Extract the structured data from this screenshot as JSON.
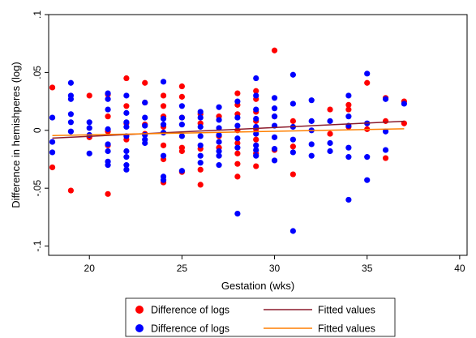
{
  "chart_data": {
    "type": "scatter",
    "xlabel": "Gestation (wks)",
    "ylabel": "Difference in hemishperes (log)",
    "xlim": [
      17.8,
      40.4
    ],
    "ylim": [
      -0.108,
      0.1
    ],
    "xticks": [
      "20",
      "25",
      "30",
      "35",
      "40"
    ],
    "xtick_values": [
      20,
      25,
      30,
      35,
      40
    ],
    "yticks": [
      ".1",
      ".05",
      "0",
      "-.05",
      "-.1"
    ],
    "ytick_values": [
      0.1,
      0.05,
      0,
      -0.05,
      -0.1
    ],
    "grid": false,
    "legend_position": "bottom",
    "series": [
      {
        "name": "Difference of logs",
        "kind": "scatter",
        "color": "#ff0000",
        "points": [
          [
            18,
            0.037
          ],
          [
            18,
            -0.032
          ],
          [
            19,
            -0.052
          ],
          [
            20,
            0.03
          ],
          [
            20,
            -0.006
          ],
          [
            21,
            0.031
          ],
          [
            21,
            0.012
          ],
          [
            21,
            -0.001
          ],
          [
            21,
            -0.013
          ],
          [
            21,
            -0.055
          ],
          [
            22,
            0.045
          ],
          [
            22,
            0.021
          ],
          [
            22,
            0.006
          ],
          [
            22,
            -0.008
          ],
          [
            23,
            0.041
          ],
          [
            23,
            0.024
          ],
          [
            23,
            0.005
          ],
          [
            23,
            -0.003
          ],
          [
            24,
            0.03
          ],
          [
            24,
            0.021
          ],
          [
            24,
            0.012
          ],
          [
            24,
            0.003
          ],
          [
            24,
            -0.013
          ],
          [
            24,
            -0.025
          ],
          [
            24,
            -0.045
          ],
          [
            25,
            0.038
          ],
          [
            25,
            0.029
          ],
          [
            25,
            0.011
          ],
          [
            25,
            -0.015
          ],
          [
            25,
            -0.018
          ],
          [
            25,
            -0.036
          ],
          [
            26,
            0.014
          ],
          [
            26,
            0.006
          ],
          [
            26,
            -0.016
          ],
          [
            26,
            -0.034
          ],
          [
            26,
            -0.047
          ],
          [
            27,
            0.012
          ],
          [
            27,
            -0.005
          ],
          [
            27,
            -0.015
          ],
          [
            28,
            0.032
          ],
          [
            28,
            0.022
          ],
          [
            28,
            0.014
          ],
          [
            28,
            0.0
          ],
          [
            28,
            -0.011
          ],
          [
            28,
            -0.02
          ],
          [
            28,
            -0.029
          ],
          [
            28,
            -0.04
          ],
          [
            29,
            0.034
          ],
          [
            29,
            0.027
          ],
          [
            29,
            0.016
          ],
          [
            29,
            0.008
          ],
          [
            29,
            0.001
          ],
          [
            29,
            -0.008
          ],
          [
            29,
            -0.02
          ],
          [
            29,
            -0.031
          ],
          [
            30,
            0.069
          ],
          [
            30,
            0.012
          ],
          [
            30,
            -0.017
          ],
          [
            31,
            0.008
          ],
          [
            31,
            -0.014
          ],
          [
            31,
            -0.038
          ],
          [
            33,
            0.018
          ],
          [
            33,
            -0.003
          ],
          [
            34,
            0.018
          ],
          [
            34,
            0.003
          ],
          [
            34,
            0.022
          ],
          [
            35,
            0.041
          ],
          [
            35,
            0.001
          ],
          [
            36,
            0.028
          ],
          [
            36,
            0.008
          ],
          [
            36,
            -0.024
          ],
          [
            37,
            0.025
          ],
          [
            37,
            0.006
          ]
        ]
      },
      {
        "name": "Difference of logs",
        "kind": "scatter",
        "color": "#0000ff",
        "points": [
          [
            18,
            0.011
          ],
          [
            18,
            -0.01
          ],
          [
            18,
            -0.019
          ],
          [
            19,
            0.041
          ],
          [
            19,
            0.03
          ],
          [
            19,
            0.027
          ],
          [
            19,
            0.014
          ],
          [
            19,
            0.007
          ],
          [
            19,
            -0.001
          ],
          [
            20,
            0.007
          ],
          [
            20,
            0.002
          ],
          [
            20,
            -0.004
          ],
          [
            20,
            -0.02
          ],
          [
            21,
            0.032
          ],
          [
            21,
            0.027
          ],
          [
            21,
            0.018
          ],
          [
            21,
            0.001
          ],
          [
            21,
            -0.012
          ],
          [
            21,
            -0.018
          ],
          [
            21,
            -0.027
          ],
          [
            21,
            -0.03
          ],
          [
            22,
            0.03
          ],
          [
            22,
            0.015
          ],
          [
            22,
            0.007
          ],
          [
            22,
            0.003
          ],
          [
            22,
            -0.005
          ],
          [
            22,
            -0.018
          ],
          [
            22,
            -0.023
          ],
          [
            22,
            -0.03
          ],
          [
            22,
            -0.034
          ],
          [
            23,
            0.024
          ],
          [
            23,
            0.011
          ],
          [
            23,
            0.004
          ],
          [
            23,
            -0.004
          ],
          [
            23,
            -0.008
          ],
          [
            23,
            -0.011
          ],
          [
            24,
            0.042
          ],
          [
            24,
            0.01
          ],
          [
            24,
            0.005
          ],
          [
            24,
            -0.002
          ],
          [
            24,
            -0.022
          ],
          [
            24,
            -0.04
          ],
          [
            24,
            -0.043
          ],
          [
            25,
            0.021
          ],
          [
            25,
            0.011
          ],
          [
            25,
            0.005
          ],
          [
            25,
            -0.005
          ],
          [
            25,
            -0.035
          ],
          [
            26,
            0.016
          ],
          [
            26,
            0.011
          ],
          [
            26,
            0.003
          ],
          [
            26,
            -0.005
          ],
          [
            26,
            -0.013
          ],
          [
            26,
            -0.022
          ],
          [
            26,
            -0.028
          ],
          [
            27,
            0.02
          ],
          [
            27,
            0.009
          ],
          [
            27,
            0.002
          ],
          [
            27,
            -0.004
          ],
          [
            27,
            -0.01
          ],
          [
            27,
            -0.018
          ],
          [
            27,
            -0.022
          ],
          [
            27,
            -0.03
          ],
          [
            28,
            0.025
          ],
          [
            28,
            0.011
          ],
          [
            28,
            0.004
          ],
          [
            28,
            -0.007
          ],
          [
            28,
            -0.015
          ],
          [
            28,
            -0.072
          ],
          [
            29,
            0.045
          ],
          [
            29,
            0.03
          ],
          [
            29,
            0.018
          ],
          [
            29,
            0.01
          ],
          [
            29,
            0.003
          ],
          [
            29,
            -0.003
          ],
          [
            29,
            -0.013
          ],
          [
            29,
            -0.017
          ],
          [
            29,
            -0.022
          ],
          [
            30,
            0.028
          ],
          [
            30,
            0.019
          ],
          [
            30,
            0.012
          ],
          [
            30,
            0.004
          ],
          [
            30,
            -0.006
          ],
          [
            30,
            -0.016
          ],
          [
            30,
            -0.026
          ],
          [
            31,
            0.048
          ],
          [
            31,
            0.023
          ],
          [
            31,
            0.003
          ],
          [
            31,
            -0.008
          ],
          [
            31,
            -0.019
          ],
          [
            31,
            -0.087
          ],
          [
            32,
            0.026
          ],
          [
            32,
            0.008
          ],
          [
            32,
            0.0
          ],
          [
            32,
            -0.012
          ],
          [
            32,
            -0.022
          ],
          [
            33,
            0.008
          ],
          [
            33,
            -0.011
          ],
          [
            33,
            -0.018
          ],
          [
            34,
            0.03
          ],
          [
            34,
            0.012
          ],
          [
            34,
            0.004
          ],
          [
            34,
            -0.015
          ],
          [
            34,
            -0.023
          ],
          [
            34,
            -0.06
          ],
          [
            35,
            0.049
          ],
          [
            35,
            0.006
          ],
          [
            35,
            -0.023
          ],
          [
            35,
            -0.043
          ],
          [
            36,
            0.027
          ],
          [
            36,
            -0.001
          ],
          [
            36,
            -0.017
          ],
          [
            37,
            0.023
          ]
        ]
      },
      {
        "name": "Fitted values",
        "kind": "line",
        "color": "#8b1a2b",
        "points": [
          [
            18,
            -0.0067
          ],
          [
            37,
            0.0078
          ]
        ]
      },
      {
        "name": "Fitted values",
        "kind": "line",
        "color": "#ff7f00",
        "points": [
          [
            18,
            -0.0045
          ],
          [
            37,
            0.0013
          ]
        ]
      }
    ]
  }
}
